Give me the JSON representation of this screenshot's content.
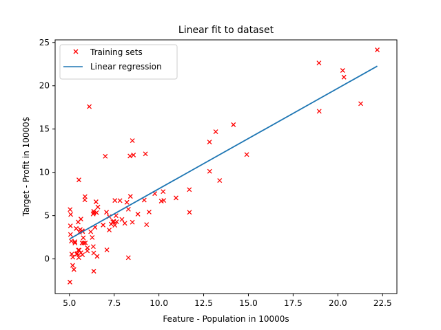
{
  "chart_data": {
    "type": "scatter",
    "title": "Linear fit to dataset",
    "xlabel": "Feature - Population in 10000s",
    "ylabel": "Target - Profit in 10000$",
    "xlim": [
      4.2,
      23.3
    ],
    "ylim": [
      -4.0,
      25.3
    ],
    "xticks": [
      5.0,
      7.5,
      10.0,
      12.5,
      15.0,
      17.5,
      20.0,
      22.5
    ],
    "xtick_labels": [
      "5.0",
      "7.5",
      "10.0",
      "12.5",
      "15.0",
      "17.5",
      "20.0",
      "22.5"
    ],
    "yticks": [
      0,
      5,
      10,
      15,
      20,
      25
    ],
    "ytick_labels": [
      "0",
      "5",
      "10",
      "15",
      "20",
      "25"
    ],
    "grid": false,
    "legend_position": "top-left",
    "series": [
      {
        "name": "Training sets",
        "kind": "scatter",
        "marker": "x",
        "color": "#ff0000",
        "x": [
          6.1101,
          5.5277,
          8.5186,
          7.0032,
          5.8598,
          8.3829,
          7.4764,
          8.5781,
          6.4862,
          5.0546,
          5.7107,
          14.164,
          5.734,
          8.4084,
          5.6407,
          5.3794,
          6.3654,
          5.1301,
          6.4296,
          7.0708,
          6.1891,
          20.27,
          5.4901,
          6.3261,
          5.5649,
          18.945,
          12.828,
          10.957,
          13.176,
          22.203,
          5.2524,
          6.5894,
          9.2482,
          5.8918,
          8.2111,
          7.9334,
          8.0959,
          5.6063,
          12.836,
          6.3534,
          5.4069,
          6.8825,
          11.708,
          5.7737,
          7.8247,
          7.0931,
          5.0702,
          5.8014,
          11.7,
          5.5416,
          7.5402,
          5.3077,
          7.4239,
          7.6031,
          6.3328,
          6.3589,
          6.2742,
          5.6397,
          9.3102,
          9.4536,
          8.8254,
          5.1793,
          21.279,
          14.908,
          18.959,
          7.2182,
          8.2951,
          10.236,
          5.4994,
          20.341,
          10.136,
          7.3345,
          6.0062,
          7.2259,
          5.0269,
          6.5479,
          7.5386,
          5.0365,
          10.274,
          5.1077,
          5.7292,
          5.1884,
          6.3557,
          9.7687,
          6.5159,
          8.5172,
          9.1802,
          6.002,
          5.5204,
          5.0594,
          5.7077,
          7.6366,
          5.8707,
          5.3054,
          8.2934,
          13.394,
          5.4369
        ],
        "y": [
          17.592,
          9.1302,
          13.662,
          11.854,
          6.8233,
          11.886,
          4.3483,
          12.0,
          6.5987,
          3.8166,
          3.2522,
          15.505,
          3.1551,
          7.2258,
          0.71618,
          3.5129,
          5.3048,
          0.56077,
          3.6518,
          5.3893,
          3.1386,
          21.767,
          4.263,
          5.1875,
          3.0825,
          22.638,
          13.501,
          7.0467,
          14.692,
          24.147,
          -1.22,
          5.9966,
          12.134,
          1.8495,
          6.5426,
          4.5623,
          4.1164,
          3.3928,
          10.117,
          5.4974,
          0.55657,
          3.9115,
          5.3854,
          2.4406,
          6.7318,
          1.0463,
          5.1337,
          1.844,
          8.0043,
          1.0179,
          6.7504,
          1.8396,
          4.2885,
          4.9981,
          1.4233,
          -1.4211,
          2.4756,
          4.6042,
          3.9624,
          5.4141,
          5.1694,
          -0.74279,
          17.929,
          12.054,
          17.054,
          4.8852,
          5.7442,
          7.7754,
          1.0173,
          20.992,
          6.6799,
          4.0259,
          1.2784,
          3.3411,
          -2.6807,
          0.29678,
          3.8845,
          5.7014,
          6.7526,
          2.0576,
          0.47953,
          0.20421,
          0.67861,
          7.5435,
          5.3436,
          4.2415,
          6.7981,
          0.92695,
          0.152,
          2.8214,
          1.8451,
          4.2959,
          7.2029,
          1.9869,
          0.14454,
          9.0551,
          0.61705
        ]
      },
      {
        "name": "Linear regression",
        "kind": "line",
        "color": "#1f77b4",
        "x": [
          5.0269,
          22.203
        ],
        "y": [
          2.33,
          22.27
        ]
      }
    ]
  }
}
